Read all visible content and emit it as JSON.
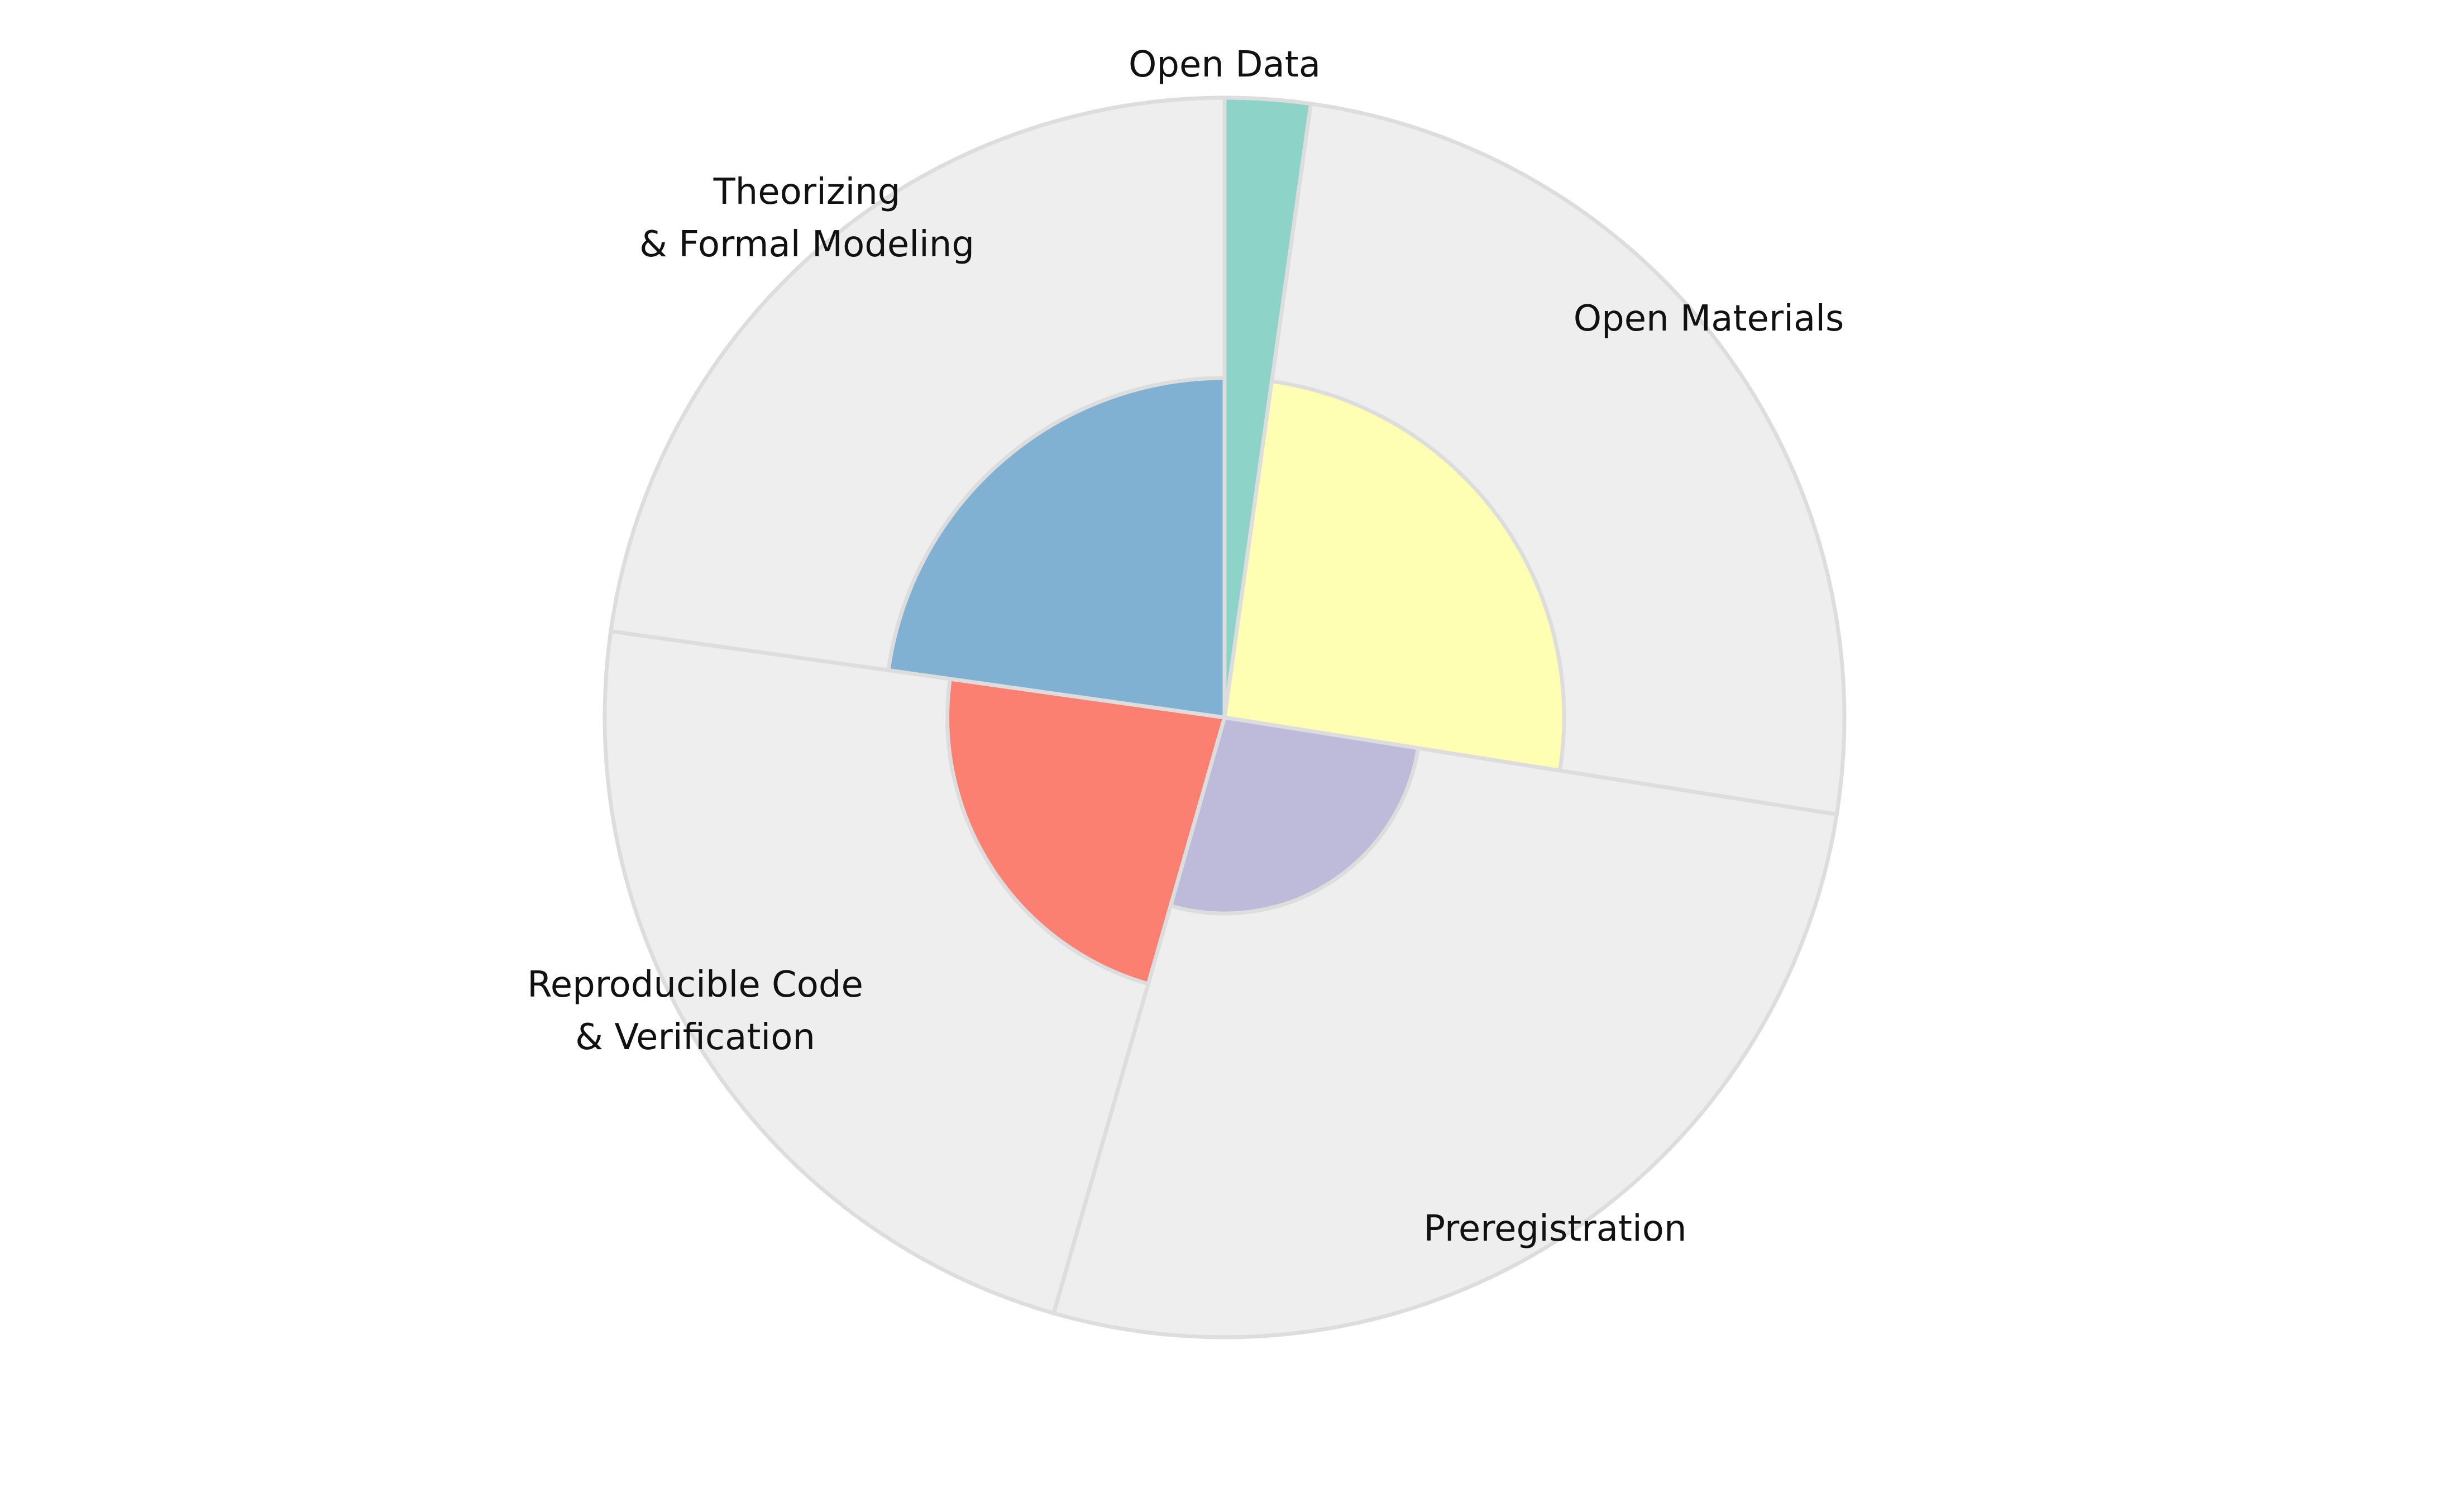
{
  "chart_data": {
    "type": "nightingale-rose",
    "title": "",
    "categories": [
      "Open Data",
      "Open Materials",
      "Preregistration",
      "Reproducible Code\n& Verification",
      "Theorizing\n& Formal Modeling"
    ],
    "values": [
      1.0,
      0.3,
      0.1,
      0.2,
      0.3
    ],
    "max_value": 1.0,
    "segment_spans_deg": [
      8,
      91,
      97,
      82,
      82
    ],
    "start_angle_deg": 0,
    "direction": "clockwise",
    "background_full_radius": true,
    "colors": {
      "series": [
        "#8dd3c7",
        "#ffffb3",
        "#bebada",
        "#fb8072",
        "#80b1d3"
      ],
      "background": "#eeeeee",
      "edge": "#dddddd"
    },
    "legend": "none",
    "grid": false
  }
}
